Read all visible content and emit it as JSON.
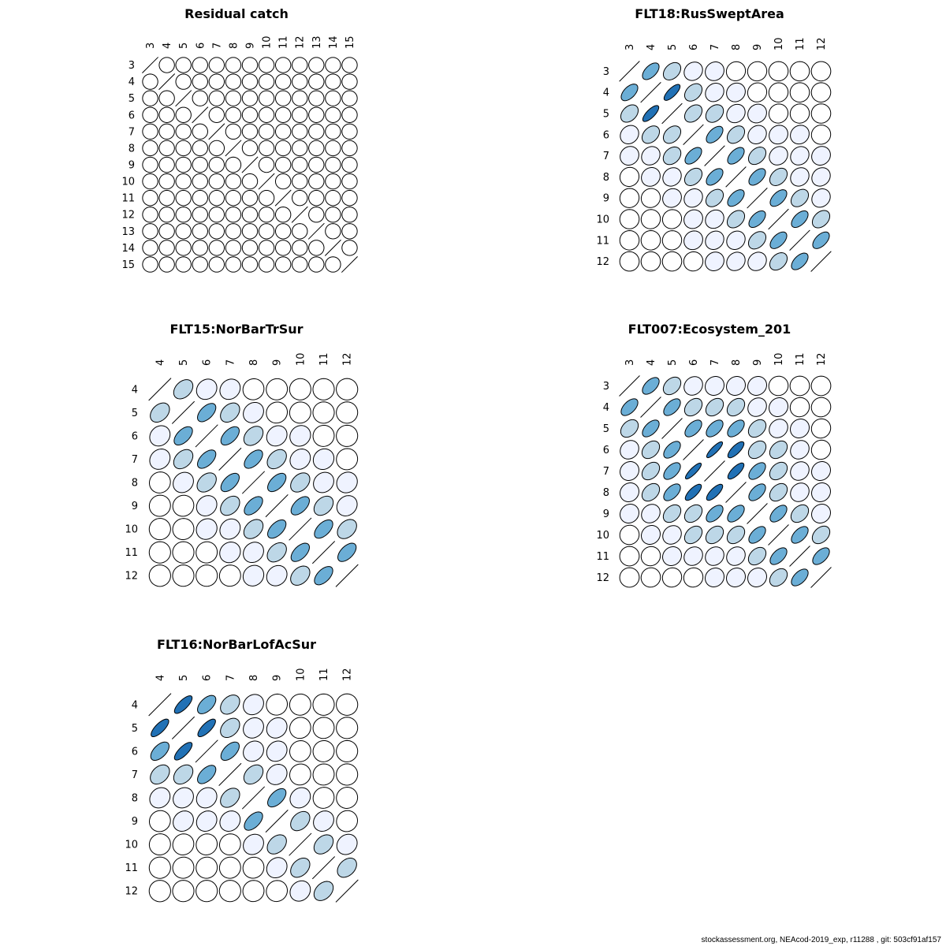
{
  "footer": "stockassessment.org, NEAcod-2019_exp, r11288 , git: 503cf91af157",
  "colors": {
    "level0": "#ffffff",
    "level1": "#eff3ff",
    "level2": "#bdd7e7",
    "level3": "#6baed6",
    "level4": "#2171b5"
  },
  "chart_data": [
    {
      "type": "correlation-ellipse-matrix",
      "title": "Residual catch",
      "ages": [
        "3",
        "4",
        "5",
        "6",
        "7",
        "8",
        "9",
        "10",
        "11",
        "12",
        "13",
        "14",
        "15"
      ],
      "lag_correlations": [
        0,
        0,
        0,
        0,
        0,
        0,
        0,
        0,
        0,
        0,
        0,
        0
      ]
    },
    {
      "type": "correlation-ellipse-matrix",
      "title": "FLT18:RusSweptArea",
      "ages": [
        "3",
        "4",
        "5",
        "6",
        "7",
        "8",
        "9",
        "10",
        "11",
        "12"
      ],
      "correlations": [
        [
          1.0,
          0.55,
          0.35,
          0.15,
          0.1,
          0.05,
          0.03,
          0.01,
          0.01,
          0.0
        ],
        [
          0.55,
          1.0,
          0.75,
          0.35,
          0.15,
          0.1,
          0.05,
          0.03,
          0.01,
          0.01
        ],
        [
          0.35,
          0.75,
          1.0,
          0.35,
          0.3,
          0.15,
          0.1,
          0.05,
          0.03,
          0.01
        ],
        [
          0.15,
          0.35,
          0.35,
          1.0,
          0.55,
          0.35,
          0.15,
          0.1,
          0.1,
          0.03
        ],
        [
          0.1,
          0.15,
          0.3,
          0.55,
          1.0,
          0.55,
          0.35,
          0.15,
          0.15,
          0.1
        ],
        [
          0.05,
          0.1,
          0.15,
          0.35,
          0.55,
          1.0,
          0.55,
          0.35,
          0.15,
          0.15
        ],
        [
          0.03,
          0.05,
          0.1,
          0.15,
          0.35,
          0.55,
          1.0,
          0.55,
          0.35,
          0.15
        ],
        [
          0.01,
          0.03,
          0.05,
          0.1,
          0.15,
          0.35,
          0.55,
          1.0,
          0.55,
          0.35
        ],
        [
          0.01,
          0.01,
          0.03,
          0.1,
          0.15,
          0.15,
          0.35,
          0.55,
          1.0,
          0.55
        ],
        [
          0.0,
          0.01,
          0.01,
          0.03,
          0.1,
          0.15,
          0.15,
          0.35,
          0.55,
          1.0
        ]
      ]
    },
    {
      "type": "correlation-ellipse-matrix",
      "title": "FLT15:NorBarTrSur",
      "ages": [
        "4",
        "5",
        "6",
        "7",
        "8",
        "9",
        "10",
        "11",
        "12"
      ],
      "correlations": [
        [
          1.0,
          0.35,
          0.15,
          0.15,
          0.05,
          0.03,
          0.01,
          0.01,
          0.0
        ],
        [
          0.35,
          1.0,
          0.55,
          0.35,
          0.15,
          0.05,
          0.03,
          0.01,
          0.01
        ],
        [
          0.15,
          0.55,
          1.0,
          0.55,
          0.35,
          0.15,
          0.1,
          0.03,
          0.01
        ],
        [
          0.15,
          0.35,
          0.55,
          1.0,
          0.55,
          0.35,
          0.15,
          0.1,
          0.03
        ],
        [
          0.05,
          0.15,
          0.35,
          0.55,
          1.0,
          0.55,
          0.35,
          0.15,
          0.1
        ],
        [
          0.03,
          0.05,
          0.15,
          0.35,
          0.55,
          1.0,
          0.55,
          0.35,
          0.15
        ],
        [
          0.01,
          0.03,
          0.1,
          0.15,
          0.35,
          0.55,
          1.0,
          0.55,
          0.35
        ],
        [
          0.01,
          0.01,
          0.03,
          0.1,
          0.15,
          0.35,
          0.55,
          1.0,
          0.55
        ],
        [
          0.0,
          0.01,
          0.01,
          0.03,
          0.1,
          0.15,
          0.35,
          0.55,
          1.0
        ]
      ]
    },
    {
      "type": "correlation-ellipse-matrix",
      "title": "FLT007:Ecosystem_201",
      "ages": [
        "3",
        "4",
        "5",
        "6",
        "7",
        "8",
        "9",
        "10",
        "11",
        "12"
      ],
      "correlations": [
        [
          1.0,
          0.55,
          0.35,
          0.15,
          0.1,
          0.1,
          0.1,
          0.03,
          0.01,
          0.01
        ],
        [
          0.55,
          1.0,
          0.55,
          0.35,
          0.35,
          0.35,
          0.15,
          0.1,
          0.05,
          0.03
        ],
        [
          0.35,
          0.55,
          1.0,
          0.55,
          0.55,
          0.55,
          0.35,
          0.15,
          0.1,
          0.05
        ],
        [
          0.15,
          0.35,
          0.55,
          1.0,
          0.85,
          0.75,
          0.35,
          0.35,
          0.15,
          0.05
        ],
        [
          0.1,
          0.35,
          0.55,
          0.85,
          1.0,
          0.75,
          0.55,
          0.35,
          0.15,
          0.1
        ],
        [
          0.1,
          0.35,
          0.55,
          0.75,
          0.75,
          1.0,
          0.55,
          0.35,
          0.15,
          0.1
        ],
        [
          0.1,
          0.15,
          0.35,
          0.35,
          0.55,
          0.55,
          1.0,
          0.55,
          0.35,
          0.1
        ],
        [
          0.03,
          0.1,
          0.15,
          0.35,
          0.35,
          0.35,
          0.55,
          1.0,
          0.55,
          0.35
        ],
        [
          0.01,
          0.05,
          0.1,
          0.15,
          0.15,
          0.15,
          0.35,
          0.55,
          1.0,
          0.55
        ],
        [
          0.01,
          0.03,
          0.05,
          0.05,
          0.1,
          0.1,
          0.1,
          0.35,
          0.55,
          1.0
        ]
      ]
    },
    {
      "type": "correlation-ellipse-matrix",
      "title": "FLT16:NorBarLofAcSur",
      "ages": [
        "4",
        "5",
        "6",
        "7",
        "8",
        "9",
        "10",
        "11",
        "12"
      ],
      "correlations": [
        [
          1.0,
          0.75,
          0.55,
          0.35,
          0.15,
          0.05,
          0.03,
          0.01,
          0.0
        ],
        [
          0.75,
          1.0,
          0.75,
          0.35,
          0.15,
          0.15,
          0.05,
          0.03,
          0.01
        ],
        [
          0.55,
          0.75,
          1.0,
          0.55,
          0.15,
          0.15,
          0.05,
          0.03,
          0.01
        ],
        [
          0.35,
          0.35,
          0.55,
          1.0,
          0.35,
          0.15,
          0.05,
          0.03,
          0.01
        ],
        [
          0.15,
          0.15,
          0.15,
          0.35,
          1.0,
          0.55,
          0.15,
          0.05,
          0.03
        ],
        [
          0.05,
          0.15,
          0.15,
          0.15,
          0.55,
          1.0,
          0.35,
          0.15,
          0.05
        ],
        [
          0.03,
          0.05,
          0.05,
          0.05,
          0.15,
          0.35,
          1.0,
          0.35,
          0.15
        ],
        [
          0.01,
          0.03,
          0.03,
          0.03,
          0.05,
          0.15,
          0.35,
          1.0,
          0.35
        ],
        [
          0.0,
          0.01,
          0.01,
          0.01,
          0.03,
          0.05,
          0.15,
          0.35,
          1.0
        ]
      ]
    }
  ]
}
